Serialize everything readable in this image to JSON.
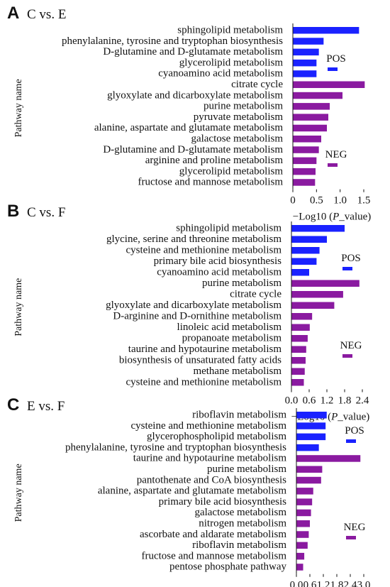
{
  "colors": {
    "pos": "#1a22ff",
    "neg": "#8a1aa0"
  },
  "legend": {
    "pos": "POS",
    "neg": "NEG"
  },
  "chart_data": [
    {
      "type": "bar",
      "orientation": "horizontal",
      "panel": "A",
      "title": "C vs. E",
      "ylabel": "Pathway name",
      "xlabel_prefix": "−Log10 (",
      "xlabel_italic": "P",
      "xlabel_suffix": "_value)",
      "xlim": [
        0,
        1.5
      ],
      "xticks": [
        "0",
        "0.5",
        "1.0",
        "1.5"
      ],
      "tick_values": [
        0,
        0.5,
        1.0,
        1.5
      ],
      "series": [
        {
          "name": "POS",
          "categories": [
            "sphingolipid metabolism",
            "phenylalanine, tyrosine and tryptophan biosynthesis",
            "D-glutamine and D-glutamate metabolism",
            "glycerolipid metabolism",
            "cyanoamino acid metabolism"
          ],
          "values": [
            1.4,
            0.65,
            0.55,
            0.5,
            0.5
          ]
        },
        {
          "name": "NEG",
          "categories": [
            "citrate cycle",
            "glyoxylate and dicarboxylate metabolism",
            "purine metabolism",
            "pyruvate metabolism",
            "alanine, aspartate and glutamate metabolism",
            "galactose metabolism",
            "D-glutamine and D-glutamate metabolism",
            "arginine and proline metabolism",
            "glycerolipid metabolism",
            "fructose and mannose metabolism"
          ],
          "values": [
            1.52,
            1.05,
            0.78,
            0.75,
            0.72,
            0.6,
            0.55,
            0.5,
            0.48,
            0.47
          ]
        }
      ]
    },
    {
      "type": "bar",
      "orientation": "horizontal",
      "panel": "B",
      "title": "C vs. F",
      "ylabel": "Pathway name",
      "xlabel_prefix": "−Log10 (",
      "xlabel_italic": "P",
      "xlabel_suffix": "_value)",
      "xlim": [
        0,
        2.4
      ],
      "xticks": [
        "0.0",
        "0.6",
        "1.2",
        "1.8",
        "2.4"
      ],
      "tick_values": [
        0,
        0.6,
        1.2,
        1.8,
        2.4
      ],
      "series": [
        {
          "name": "POS",
          "categories": [
            "sphingolipid metabolism",
            "glycine, serine and threonine metabolism",
            "cysteine and methionine metabolism",
            "primary bile acid biosynthesis",
            "cyanoamino acid metabolism"
          ],
          "values": [
            1.8,
            1.2,
            0.95,
            0.85,
            0.6
          ]
        },
        {
          "name": "NEG",
          "categories": [
            "purine metabolism",
            "citrate cycle",
            "glyoxylate and dicarboxylate metabolism",
            "D-arginine and D-ornithine metabolism",
            "linoleic acid metabolism",
            "propanoate metabolism",
            "taurine and hypotaurine metabolism",
            "biosynthesis of unsaturated fatty acids",
            "methane metabolism",
            "cysteine and methionine metabolism"
          ],
          "values": [
            2.3,
            1.75,
            1.45,
            0.7,
            0.62,
            0.55,
            0.5,
            0.48,
            0.45,
            0.42
          ]
        }
      ]
    },
    {
      "type": "bar",
      "orientation": "horizontal",
      "panel": "C",
      "title": "E vs. F",
      "ylabel": "Pathway name",
      "xlabel_prefix": "−Log10 (",
      "xlabel_italic": "P",
      "xlabel_suffix": "_value)",
      "xlim": [
        0,
        3.0
      ],
      "xticks": [
        "0.0",
        "0.6",
        "1.2",
        "1.8",
        "2.4",
        "3.0"
      ],
      "tick_values": [
        0,
        0.6,
        1.2,
        1.8,
        2.4,
        3.0
      ],
      "series": [
        {
          "name": "POS",
          "categories": [
            "riboflavin metabolism",
            "cysteine and methionine metabolism",
            "glycerophospholipid metabolism",
            "phenylalanine, tyrosine and tryptophan biosynthesis"
          ],
          "values": [
            1.35,
            1.3,
            1.3,
            1.0
          ]
        },
        {
          "name": "NEG",
          "categories": [
            "taurine and hypotaurine metabolism",
            "purine metabolism",
            "pantothenate and CoA biosynthesis",
            "alanine, aspartate and glutamate metabolism",
            "primary bile acid biosynthesis",
            "galactose metabolism",
            "nitrogen metabolism",
            "ascorbate and aldarate metabolism",
            "riboflavin metabolism",
            "fructose and mannose metabolism",
            "pentose phosphate pathway"
          ],
          "values": [
            2.85,
            1.15,
            1.1,
            0.75,
            0.7,
            0.65,
            0.6,
            0.55,
            0.5,
            0.35,
            0.3
          ]
        }
      ]
    }
  ]
}
